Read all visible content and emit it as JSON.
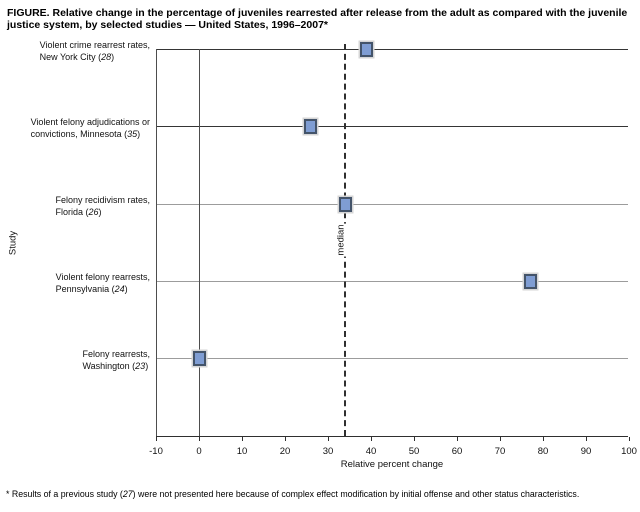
{
  "figure": {
    "title_line1": "FIGURE. Relative change in the percentage of juveniles rearrested after release from the adult as compared with the juvenile",
    "title_line2": "justice system, by selected studies — United States, 1996–2007*",
    "footnote": "* Results of a previous study (27) were not presented here because of complex effect modification by initial offense and other status characteristics."
  },
  "chart_data": {
    "type": "scatter",
    "title": "FIGURE. Relative change in the percentage of juveniles rearrested after release from the adult as compared with the juvenile justice system, by selected studies — United States, 1996–2007*",
    "xlabel": "Relative percent change",
    "ylabel": "Study",
    "xlim": [
      -10,
      100
    ],
    "xticks": [
      -10,
      0,
      10,
      20,
      30,
      40,
      50,
      60,
      70,
      80,
      90,
      100
    ],
    "grid": "horizontal-category-lines",
    "legend_position": "none",
    "median_line": {
      "label": "median",
      "value": 34,
      "style": "dashed"
    },
    "zero_reference_line": 0,
    "points": [
      {
        "study_line1": "Violent crime rearrest rates,",
        "study_line2": "New York City (28)",
        "value": 39
      },
      {
        "study_line1": "Violent felony adjudications or",
        "study_line2": "convictions, Minnesota (35)",
        "value": 26
      },
      {
        "study_line1": "Felony recidivism rates,",
        "study_line2": "Florida (26)",
        "value": 34
      },
      {
        "study_line1": "Violent felony rearrests,",
        "study_line2": "Pennsylvania (24)",
        "value": 77
      },
      {
        "study_line1": "Felony rearrests,",
        "study_line2": "Washington (23)",
        "value": 0
      }
    ],
    "colors": {
      "marker_fill": "#7f9dd3",
      "marker_border": "#44546a",
      "marker_halo": "#d6d6d6",
      "dark_category_line": "#353535",
      "light_category_line": "#9c9c9c"
    }
  }
}
